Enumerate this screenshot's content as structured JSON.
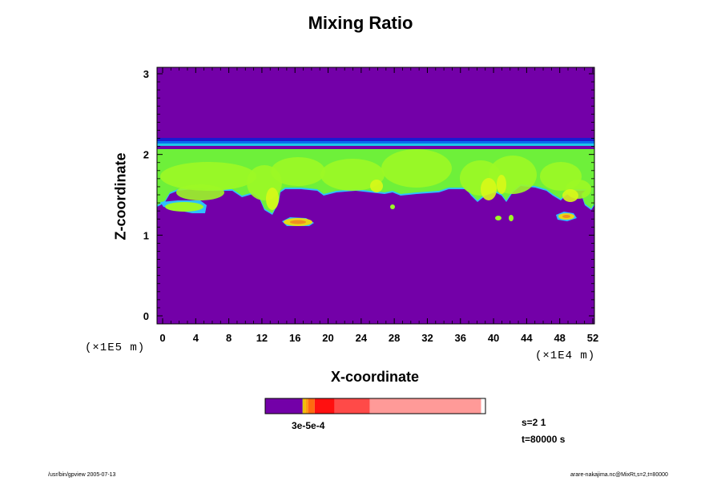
{
  "chart_data": {
    "type": "heatmap",
    "title": "Mixing Ratio",
    "xlabel": "X-coordinate",
    "ylabel": "Z-coordinate",
    "x_unit": "(×1E4 m)",
    "y_unit": "(×1E5 m)",
    "xlim": [
      0,
      52
    ],
    "ylim": [
      0,
      3
    ],
    "x_ticks": [
      "0",
      "4",
      "8",
      "12",
      "16",
      "20",
      "24",
      "28",
      "32",
      "36",
      "40",
      "44",
      "48",
      "52"
    ],
    "y_ticks": [
      "0",
      "1",
      "2",
      "3"
    ],
    "colors": {
      "background": "#7300a8",
      "cloud_light": "#6ef03a",
      "cloud_bright": "#9cf826",
      "cloud_yellow": "#d8f818",
      "cloud_base": "#2ec0ff",
      "cloud_top_dark": "#1a1ad0",
      "cloud_top_blue": "#0a6af0",
      "cloud_top_cyan": "#1ec8e8",
      "patch_orange": "#f09020",
      "patch_yellow": "#e8d818"
    },
    "colorbar": {
      "segments": [
        {
          "fraction": 0.17,
          "color": "#7300a8"
        },
        {
          "fraction": 0.005,
          "color": "#d8c800"
        },
        {
          "fraction": 0.01,
          "color": "#f5b800"
        },
        {
          "fraction": 0.01,
          "color": "#ff9a10"
        },
        {
          "fraction": 0.03,
          "color": "#ff6a10"
        },
        {
          "fraction": 0.09,
          "color": "#ff1010"
        },
        {
          "fraction": 0.16,
          "color": "#ff4a48"
        },
        {
          "fraction": 0.505,
          "color": "#ff9a98"
        }
      ],
      "label": "3e-5e-4"
    },
    "info": {
      "s": "s=2 1",
      "t": "t=80000 s"
    }
  },
  "footer": {
    "left": "/usr/bin/gpview 2005-07-13",
    "right": "arare-nakajima.nc@MixRt,s=2,t=80000"
  }
}
